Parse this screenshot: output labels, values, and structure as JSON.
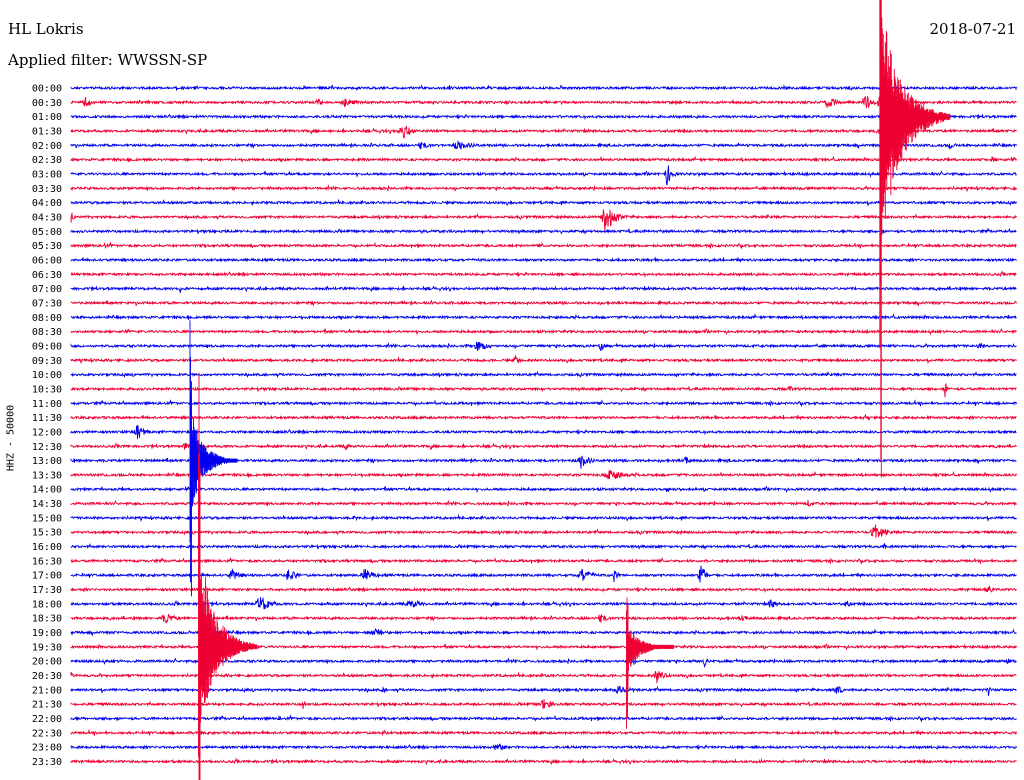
{
  "header": {
    "station": "HL Lokris",
    "date": "2018-07-21",
    "filter": "Applied filter: WWSSN-SP"
  },
  "colors": {
    "blue": "#0000ee",
    "red": "#ee0033"
  },
  "chart_data": {
    "type": "helicorder",
    "ylabel": "HHZ - 50000",
    "row_labels": [
      "00:00",
      "00:30",
      "01:00",
      "01:30",
      "02:00",
      "02:30",
      "03:00",
      "03:30",
      "04:00",
      "04:30",
      "05:00",
      "05:30",
      "06:00",
      "06:30",
      "07:00",
      "07:30",
      "08:00",
      "08:30",
      "09:00",
      "09:30",
      "10:00",
      "10:30",
      "11:00",
      "11:30",
      "12:00",
      "12:30",
      "13:00",
      "13:30",
      "14:00",
      "14:30",
      "15:00",
      "15:30",
      "16:00",
      "16:30",
      "17:00",
      "17:30",
      "18:00",
      "18:30",
      "19:00",
      "19:30",
      "20:00",
      "20:30",
      "21:00",
      "21:30",
      "22:00",
      "22:30",
      "23:00",
      "23:30"
    ],
    "row_color_pattern": [
      "blue",
      "red"
    ],
    "events": [
      {
        "row": 0,
        "x": 0.4,
        "amp": 4,
        "width": 0.004
      },
      {
        "row": 1,
        "x": 0.015,
        "amp": 7,
        "width": 0.01
      },
      {
        "row": 1,
        "x": 0.26,
        "amp": 4,
        "width": 0.015
      },
      {
        "row": 1,
        "x": 0.29,
        "amp": 5,
        "width": 0.02
      },
      {
        "row": 1,
        "x": 0.46,
        "amp": 4,
        "width": 0.006
      },
      {
        "row": 1,
        "x": 0.8,
        "amp": 8,
        "width": 0.015
      },
      {
        "row": 1,
        "x": 0.84,
        "amp": 9,
        "width": 0.015
      },
      {
        "row": 1,
        "x": 0.855,
        "amp": 8,
        "width": 0.012
      },
      {
        "row": 3,
        "x": 0.35,
        "amp": 10,
        "width": 0.015
      },
      {
        "row": 3,
        "x": 0.86,
        "amp": 8,
        "width": 0.03
      },
      {
        "row": 4,
        "x": 0.37,
        "amp": 4,
        "width": 0.02
      },
      {
        "row": 4,
        "x": 0.41,
        "amp": 5,
        "width": 0.03
      },
      {
        "row": 4,
        "x": 0.93,
        "amp": 5,
        "width": 0.006
      },
      {
        "row": 5,
        "x": 0.975,
        "amp": 4,
        "width": 0.008
      },
      {
        "row": 6,
        "x": 0.63,
        "amp": 13,
        "width": 0.01
      },
      {
        "row": 9,
        "x": 0.0,
        "amp": 6,
        "width": 0.006
      },
      {
        "row": 9,
        "x": 0.565,
        "amp": 16,
        "width": 0.02
      },
      {
        "row": 11,
        "x": 0.035,
        "amp": 3,
        "width": 0.006
      },
      {
        "row": 14,
        "x": 0.115,
        "amp": 5,
        "width": 0.003
      },
      {
        "row": 18,
        "x": 0.43,
        "amp": 7,
        "width": 0.02
      },
      {
        "row": 18,
        "x": 0.56,
        "amp": 6,
        "width": 0.008
      },
      {
        "row": 18,
        "x": 0.96,
        "amp": 4,
        "width": 0.01
      },
      {
        "row": 19,
        "x": 0.47,
        "amp": 6,
        "width": 0.008
      },
      {
        "row": 21,
        "x": 0.76,
        "amp": 4,
        "width": 0.006
      },
      {
        "row": 21,
        "x": 0.925,
        "amp": 10,
        "width": 0.004
      },
      {
        "row": 23,
        "x": 0.84,
        "amp": 4,
        "width": 0.01
      },
      {
        "row": 24,
        "x": 0.07,
        "amp": 8,
        "width": 0.015
      },
      {
        "row": 25,
        "x": 0.12,
        "amp": 4,
        "width": 0.01
      },
      {
        "row": 25,
        "x": 0.29,
        "amp": 5,
        "width": 0.006
      },
      {
        "row": 25,
        "x": 0.38,
        "amp": 3,
        "width": 0.006
      },
      {
        "row": 26,
        "x": 0.135,
        "amp": 14,
        "width": 0.01
      },
      {
        "row": 26,
        "x": 0.54,
        "amp": 9,
        "width": 0.015
      },
      {
        "row": 26,
        "x": 0.65,
        "amp": 5,
        "width": 0.01
      },
      {
        "row": 27,
        "x": 0.57,
        "amp": 6,
        "width": 0.03
      },
      {
        "row": 28,
        "x": 0.63,
        "amp": 5,
        "width": 0.004
      },
      {
        "row": 29,
        "x": 0.78,
        "amp": 4,
        "width": 0.01
      },
      {
        "row": 30,
        "x": 0.3,
        "amp": 4,
        "width": 0.004
      },
      {
        "row": 31,
        "x": 0.85,
        "amp": 9,
        "width": 0.02
      },
      {
        "row": 32,
        "x": 0.86,
        "amp": 4,
        "width": 0.006
      },
      {
        "row": 34,
        "x": 0.17,
        "amp": 6,
        "width": 0.02
      },
      {
        "row": 34,
        "x": 0.23,
        "amp": 8,
        "width": 0.015
      },
      {
        "row": 34,
        "x": 0.31,
        "amp": 7,
        "width": 0.02
      },
      {
        "row": 34,
        "x": 0.54,
        "amp": 7,
        "width": 0.02
      },
      {
        "row": 34,
        "x": 0.575,
        "amp": 9,
        "width": 0.006
      },
      {
        "row": 34,
        "x": 0.665,
        "amp": 15,
        "width": 0.01
      },
      {
        "row": 35,
        "x": 0.97,
        "amp": 5,
        "width": 0.01
      },
      {
        "row": 36,
        "x": 0.2,
        "amp": 9,
        "width": 0.02
      },
      {
        "row": 36,
        "x": 0.36,
        "amp": 4,
        "width": 0.03
      },
      {
        "row": 36,
        "x": 0.74,
        "amp": 5,
        "width": 0.015
      },
      {
        "row": 36,
        "x": 0.82,
        "amp": 4,
        "width": 0.01
      },
      {
        "row": 37,
        "x": 0.1,
        "amp": 6,
        "width": 0.02
      },
      {
        "row": 37,
        "x": 0.56,
        "amp": 5,
        "width": 0.015
      },
      {
        "row": 37,
        "x": 0.71,
        "amp": 3,
        "width": 0.02
      },
      {
        "row": 38,
        "x": 0.32,
        "amp": 6,
        "width": 0.02
      },
      {
        "row": 40,
        "x": 0.67,
        "amp": 6,
        "width": 0.006
      },
      {
        "row": 40,
        "x": 0.99,
        "amp": 6,
        "width": 0.004
      },
      {
        "row": 41,
        "x": 0.0,
        "amp": 3,
        "width": 0.015
      },
      {
        "row": 41,
        "x": 0.62,
        "amp": 8,
        "width": 0.015
      },
      {
        "row": 42,
        "x": 0.33,
        "amp": 3,
        "width": 0.01
      },
      {
        "row": 42,
        "x": 0.58,
        "amp": 5,
        "width": 0.03
      },
      {
        "row": 42,
        "x": 0.81,
        "amp": 5,
        "width": 0.015
      },
      {
        "row": 42,
        "x": 0.97,
        "amp": 12,
        "width": 0.003
      },
      {
        "row": 43,
        "x": 0.245,
        "amp": 9,
        "width": 0.003
      },
      {
        "row": 43,
        "x": 0.5,
        "amp": 6,
        "width": 0.02
      },
      {
        "row": 44,
        "x": 0.22,
        "amp": 3,
        "width": 0.004
      },
      {
        "row": 45,
        "x": 0.33,
        "amp": 4,
        "width": 0.008
      },
      {
        "row": 46,
        "x": 0.45,
        "amp": 4,
        "width": 0.02
      },
      {
        "row": 47,
        "x": 0.73,
        "amp": 3,
        "width": 0.006
      },
      {
        "row": 47,
        "x": 0.93,
        "amp": 3,
        "width": 0.004
      }
    ],
    "big_events": [
      {
        "row": 2,
        "x": 0.858,
        "color": "red",
        "up": 110,
        "down": 135,
        "width": 0.012,
        "coda": 0.06
      },
      {
        "row": 26,
        "x": 0.128,
        "color": "blue",
        "up": 48,
        "down": 48,
        "width": 0.008,
        "coda": 0.04
      },
      {
        "row": 39,
        "x": 0.137,
        "color": "red",
        "up": 98,
        "down": 85,
        "width": 0.01,
        "coda": 0.05
      },
      {
        "row": 39,
        "x": 0.59,
        "color": "red",
        "up": 22,
        "down": 28,
        "width": 0.008,
        "coda": 0.04
      }
    ]
  }
}
